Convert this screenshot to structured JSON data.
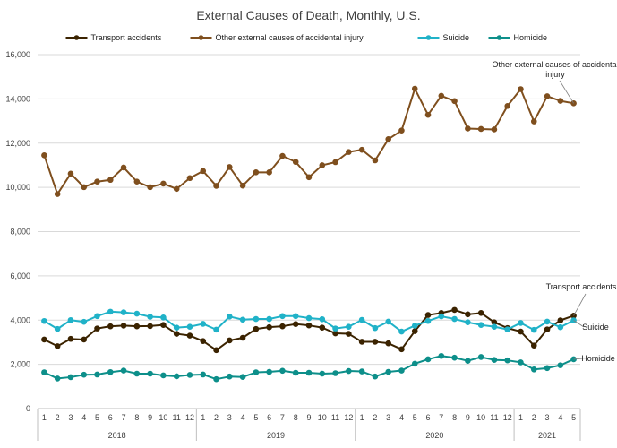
{
  "chart_data": {
    "type": "line",
    "title": "External Causes of Death, Monthly, U.S.",
    "xlabel": "",
    "ylabel": "",
    "ylim": [
      0,
      16000
    ],
    "yticks": [
      0,
      2000,
      4000,
      6000,
      8000,
      10000,
      12000,
      14000,
      16000
    ],
    "ytick_labels": [
      "0",
      "2,000",
      "4,000",
      "6,000",
      "8,000",
      "10,000",
      "12,000",
      "14,000",
      "16,000"
    ],
    "month_labels": [
      "1",
      "2",
      "3",
      "4",
      "5",
      "6",
      "7",
      "8",
      "9",
      "10",
      "11",
      "12",
      "1",
      "2",
      "3",
      "4",
      "5",
      "6",
      "7",
      "8",
      "9",
      "10",
      "11",
      "12",
      "1",
      "2",
      "3",
      "4",
      "5",
      "6",
      "7",
      "8",
      "9",
      "10",
      "11",
      "12",
      "1",
      "2",
      "3",
      "4",
      "5"
    ],
    "years": [
      {
        "label": "2018",
        "count": 12
      },
      {
        "label": "2019",
        "count": 12
      },
      {
        "label": "2020",
        "count": 12
      },
      {
        "label": "2021",
        "count": 5
      }
    ],
    "grid": true,
    "legend_position": "top",
    "series": [
      {
        "name": "Transport accidents",
        "color": "#3b2300",
        "end_label": "Transport accidents",
        "values": [
          3120,
          2820,
          3150,
          3120,
          3620,
          3720,
          3750,
          3720,
          3730,
          3780,
          3380,
          3300,
          3050,
          2640,
          3080,
          3200,
          3600,
          3680,
          3720,
          3820,
          3760,
          3660,
          3400,
          3380,
          3020,
          3020,
          2950,
          2680,
          3500,
          4230,
          4320,
          4460,
          4260,
          4320,
          3900,
          3640,
          3480,
          2850,
          3580,
          3990,
          4200
        ]
      },
      {
        "name": "Other external causes of accidental injury",
        "color": "#7f4f1e",
        "end_label": "Other external causes of accidental injury",
        "values": [
          11450,
          9700,
          10620,
          10010,
          10260,
          10340,
          10900,
          10260,
          10010,
          10170,
          9930,
          10420,
          10740,
          10070,
          10920,
          10080,
          10680,
          10680,
          11420,
          11150,
          10460,
          11000,
          11140,
          11600,
          11700,
          11220,
          12180,
          12570,
          14460,
          13280,
          14140,
          13900,
          12660,
          12640,
          12620,
          13680,
          14440,
          12980,
          14120,
          13910,
          13800
        ]
      },
      {
        "name": "Suicide",
        "color": "#20b2c8",
        "end_label": "Suicide",
        "values": [
          3960,
          3600,
          4000,
          3920,
          4180,
          4380,
          4350,
          4290,
          4150,
          4120,
          3660,
          3700,
          3830,
          3570,
          4160,
          4020,
          4050,
          4050,
          4180,
          4180,
          4090,
          4040,
          3620,
          3700,
          4010,
          3640,
          3930,
          3480,
          3750,
          3960,
          4170,
          4050,
          3900,
          3780,
          3700,
          3580,
          3870,
          3560,
          3930,
          3680,
          3990
        ]
      },
      {
        "name": "Homicide",
        "color": "#0d8f8a",
        "end_label": "Homicide",
        "values": [
          1640,
          1360,
          1420,
          1530,
          1540,
          1650,
          1720,
          1580,
          1580,
          1500,
          1460,
          1520,
          1540,
          1330,
          1450,
          1430,
          1640,
          1660,
          1710,
          1620,
          1620,
          1580,
          1600,
          1700,
          1680,
          1450,
          1660,
          1720,
          2030,
          2230,
          2380,
          2300,
          2160,
          2330,
          2200,
          2180,
          2090,
          1770,
          1830,
          1960,
          2230
        ]
      }
    ]
  }
}
